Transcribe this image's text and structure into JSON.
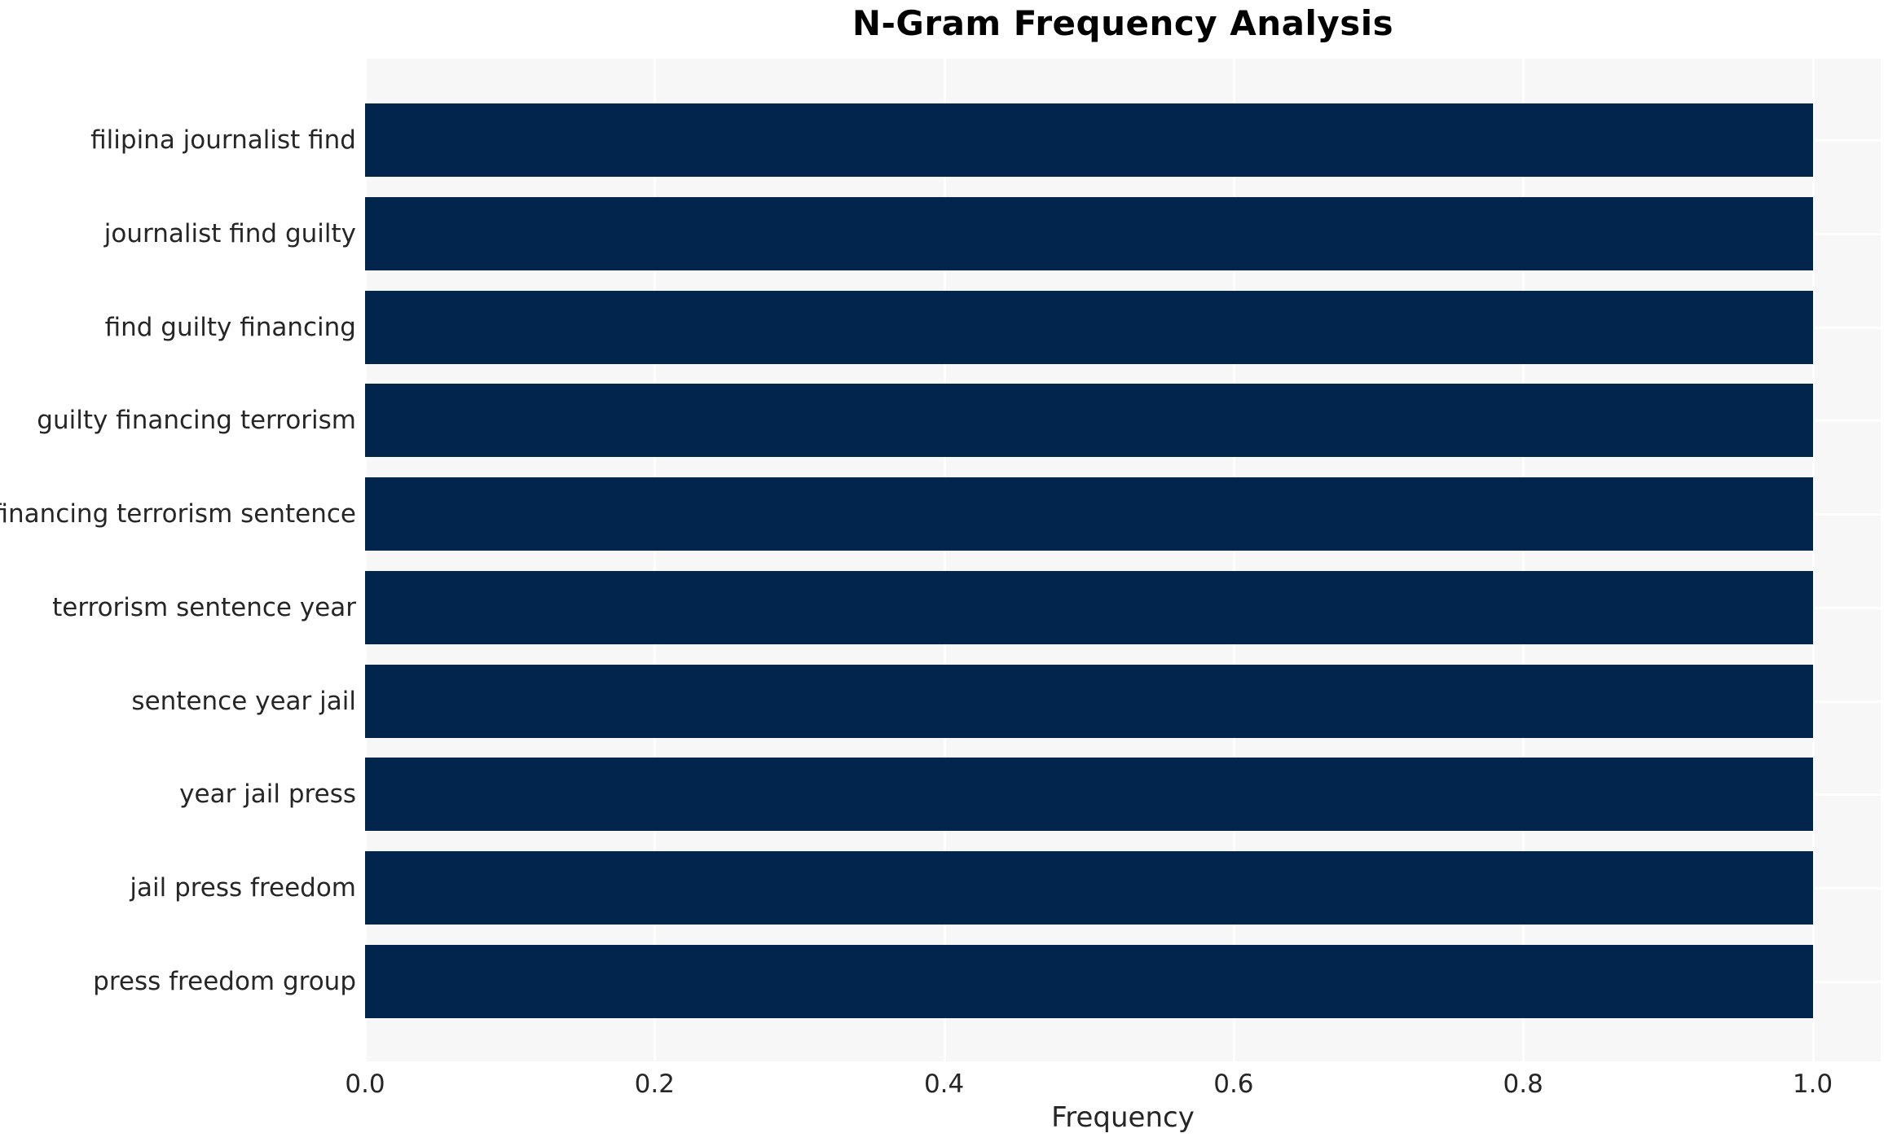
{
  "chart_data": {
    "type": "bar",
    "orientation": "horizontal",
    "title": "N-Gram Frequency Analysis",
    "xlabel": "Frequency",
    "ylabel": "",
    "categories": [
      "filipina journalist find",
      "journalist find guilty",
      "find guilty financing",
      "guilty financing terrorism",
      "financing terrorism sentence",
      "terrorism sentence year",
      "sentence year jail",
      "year jail press",
      "jail press freedom",
      "press freedom group"
    ],
    "values": [
      1.0,
      1.0,
      1.0,
      1.0,
      1.0,
      1.0,
      1.0,
      1.0,
      1.0,
      1.0
    ],
    "xticks": [
      0.0,
      0.2,
      0.4,
      0.6,
      0.8,
      1.0
    ],
    "xtick_labels": [
      "0.0",
      "0.2",
      "0.4",
      "0.6",
      "0.8",
      "1.0"
    ],
    "xlim": [
      0,
      1.047
    ],
    "grid": true,
    "legend": false,
    "colors": {
      "bar": "#02254D",
      "plot_background": "#F7F7F7",
      "gridline": "#FFFFFF",
      "figure_background": "#FFFFFF",
      "tick_text": "#262626",
      "title_text": "#000000"
    }
  }
}
